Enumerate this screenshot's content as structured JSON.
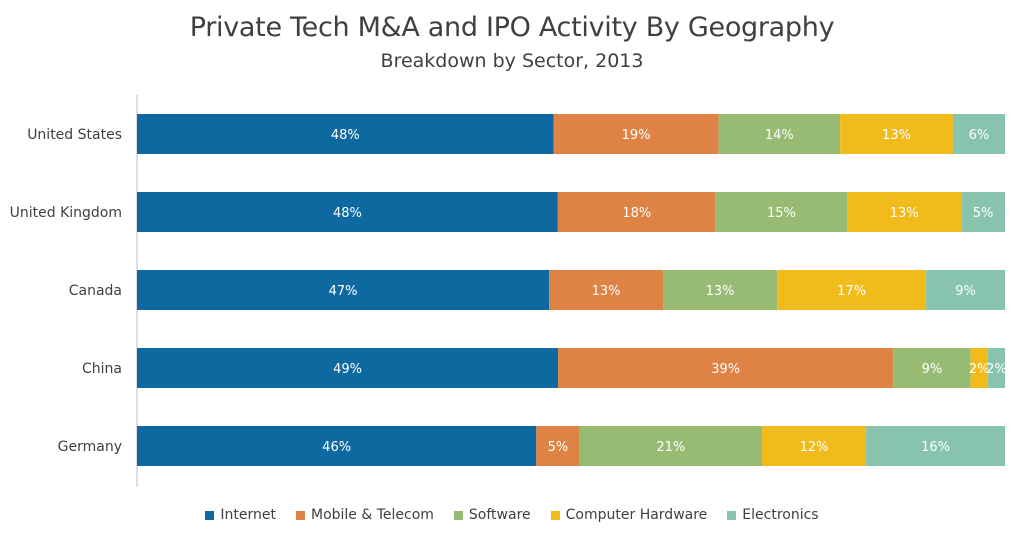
{
  "colors": {
    "internet": "#0f69a1",
    "mobile_telecom": "#de8344",
    "software": "#98bb74",
    "computer_hardware": "#f2bb1c",
    "electronics": "#88c3ad"
  },
  "chart_data": {
    "type": "bar",
    "orientation": "horizontal",
    "stacked": true,
    "title": "Private Tech M&A and IPO Activity By Geography",
    "subtitle": "Breakdown by Sector, 2013",
    "categories": [
      "United States",
      "United Kingdom",
      "Canada",
      "China",
      "Germany"
    ],
    "series": [
      {
        "name": "Internet",
        "color_key": "internet",
        "values": [
          48,
          48,
          47,
          49,
          46
        ],
        "labels": [
          "48%",
          "48%",
          "47%",
          "49%",
          "46%"
        ]
      },
      {
        "name": "Mobile & Telecom",
        "color_key": "mobile_telecom",
        "values": [
          19,
          18,
          13,
          39,
          5
        ],
        "labels": [
          "19%",
          "18%",
          "13%",
          "39%",
          "5%"
        ]
      },
      {
        "name": "Software",
        "color_key": "software",
        "values": [
          14,
          15,
          13,
          9,
          21
        ],
        "labels": [
          "14%",
          "15%",
          "13%",
          "9%",
          "21%"
        ]
      },
      {
        "name": "Computer Hardware",
        "color_key": "computer_hardware",
        "values": [
          13,
          13,
          17,
          2,
          12
        ],
        "labels": [
          "13%",
          "13%",
          "17%",
          "2%",
          "12%"
        ]
      },
      {
        "name": "Electronics",
        "color_key": "electronics",
        "values": [
          6,
          5,
          9,
          2,
          16
        ],
        "labels": [
          "6%",
          "5%",
          "9%",
          "2%",
          "16%"
        ]
      }
    ],
    "xlim": [
      0,
      100
    ],
    "grid": false,
    "legend_position": "bottom"
  }
}
